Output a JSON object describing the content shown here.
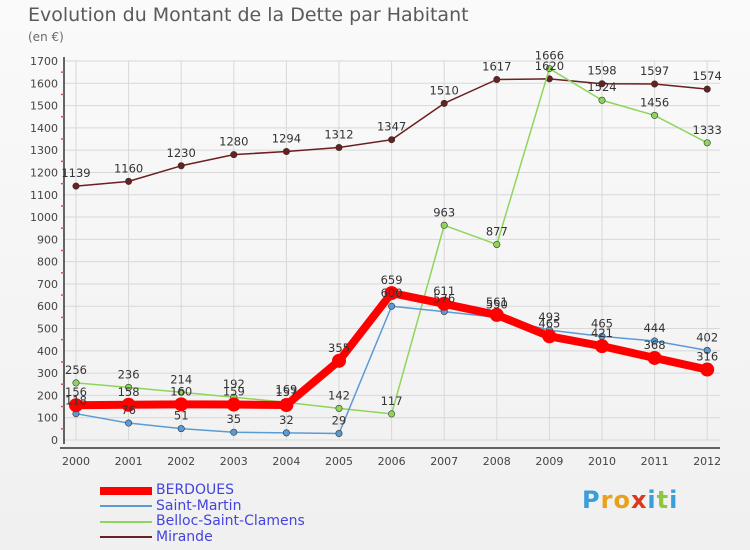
{
  "header": {
    "title": "Evolution du Montant de la Dette par Habitant",
    "subtitle": "(en €)"
  },
  "logo": {
    "letters": [
      "P",
      "r",
      "o",
      "x",
      "i",
      "t",
      "i"
    ],
    "colors": [
      "#3a9fd8",
      "#e8a11a",
      "#e8a11a",
      "#d9391f",
      "#3a9fd8",
      "#8dc63f",
      "#3a9fd8"
    ]
  },
  "chart_data": {
    "type": "line",
    "title": "Evolution du Montant de la Dette par Habitant",
    "subtitle": "(en €)",
    "xlabel": "",
    "ylabel": "",
    "x": [
      "2000",
      "2001",
      "2002",
      "2003",
      "2004",
      "2005",
      "2006",
      "2007",
      "2008",
      "2009",
      "2010",
      "2011",
      "2012"
    ],
    "ylim": [
      0,
      1700
    ],
    "yticks": [
      0,
      100,
      200,
      300,
      400,
      500,
      600,
      700,
      800,
      900,
      1000,
      1100,
      1200,
      1300,
      1400,
      1500,
      1600,
      1700
    ],
    "grid": true,
    "legend_position": "bottom-left",
    "series": [
      {
        "name": "BERDOUES",
        "color": "#ff0000",
        "emphasis": true,
        "values": [
          156,
          158,
          160,
          159,
          157,
          355,
          659,
          611,
          561,
          465,
          421,
          368,
          316
        ],
        "labels": [
          "156",
          "158",
          "160",
          "159",
          "157",
          "355",
          "659",
          "611",
          "561",
          "465",
          "421",
          "368",
          "316"
        ]
      },
      {
        "name": "Saint-Martin",
        "color": "#5b9bd5",
        "values": [
          118,
          76,
          51,
          35,
          32,
          29,
          600,
          576,
          550,
          493,
          465,
          444,
          402
        ],
        "labels": [
          "118",
          "76",
          "51",
          "35",
          "32",
          "29",
          "600",
          "576",
          "550",
          "493",
          "465",
          "444",
          "402"
        ]
      },
      {
        "name": "Belloc-Saint-Clamens",
        "color": "#8ed65a",
        "values": [
          256,
          236,
          214,
          192,
          169,
          142,
          117,
          963,
          877,
          1666,
          1524,
          1456,
          1333
        ],
        "labels": [
          "256",
          "236",
          "214",
          "192",
          "169",
          "142",
          "117",
          "963",
          "877",
          "1666",
          "1524",
          "1456",
          "1333"
        ]
      },
      {
        "name": "Mirande",
        "color": "#6b1f1f",
        "values": [
          1139,
          1160,
          1230,
          1280,
          1294,
          1312,
          1347,
          1510,
          1617,
          1620,
          1598,
          1597,
          1574
        ],
        "labels": [
          "1139",
          "1160",
          "1230",
          "1280",
          "1294",
          "1312",
          "1347",
          "1510",
          "1617",
          "1620",
          "1598",
          "1597",
          "1574"
        ]
      }
    ]
  }
}
